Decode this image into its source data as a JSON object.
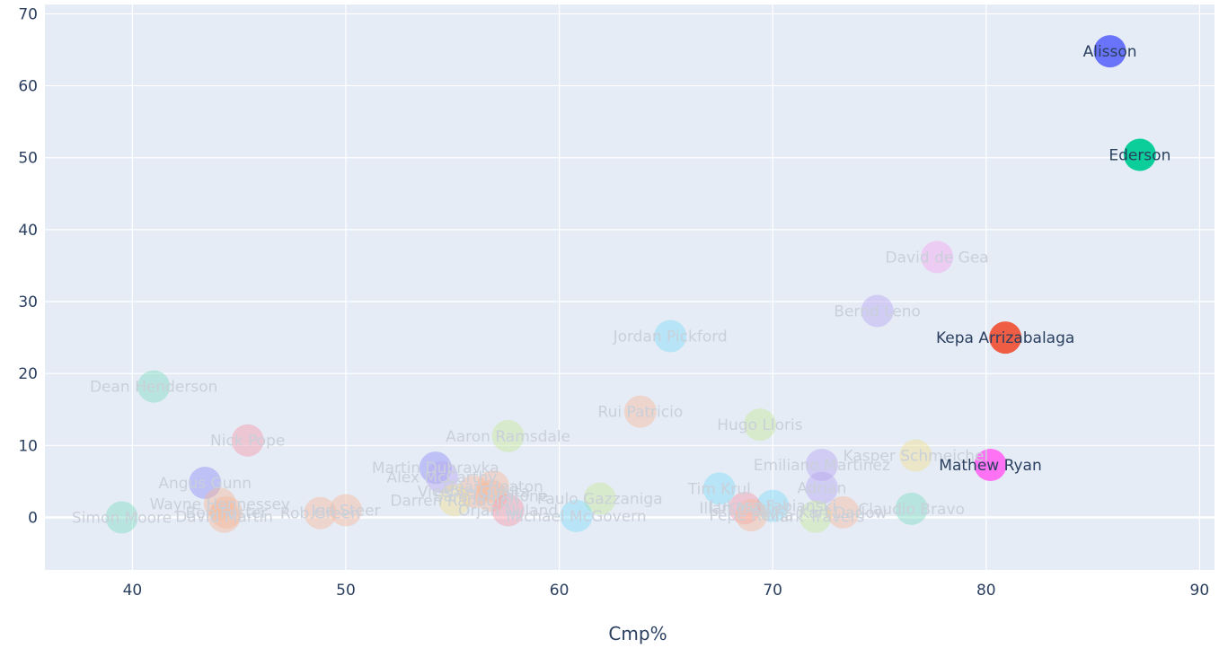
{
  "chart_data": {
    "type": "scatter",
    "title": "",
    "xlabel": "Cmp%",
    "ylabel": "",
    "xlim": [
      35.9,
      90.7
    ],
    "ylim": [
      -7.3,
      71.3
    ],
    "xticks": [
      40,
      50,
      60,
      70,
      80,
      90
    ],
    "yticks": [
      0,
      10,
      20,
      30,
      40,
      50,
      60,
      70
    ],
    "grid": true,
    "legend": "none",
    "background": "#e5ecf6",
    "points": [
      {
        "label": "Alisson",
        "x": 85.8,
        "y": 64.8,
        "color": "#636efa",
        "faded": false
      },
      {
        "label": "Ederson",
        "x": 87.2,
        "y": 50.4,
        "color": "#00cc96",
        "faded": false
      },
      {
        "label": "Kepa Arrizabalaga",
        "x": 80.9,
        "y": 25.0,
        "color": "#ef553b",
        "faded": false
      },
      {
        "label": "Mathew Ryan",
        "x": 80.2,
        "y": 7.3,
        "color": "#ff6bf2",
        "faded": false
      },
      {
        "label": "David de Gea",
        "x": 77.7,
        "y": 36.2,
        "color": "#f7a6f0",
        "faded": true
      },
      {
        "label": "Bernd Leno",
        "x": 74.9,
        "y": 28.7,
        "color": "#b9a6f0",
        "faded": true
      },
      {
        "label": "Jordan Pickford",
        "x": 65.2,
        "y": 25.2,
        "color": "#7fdcf7",
        "faded": true
      },
      {
        "label": "Dean Henderson",
        "x": 41.0,
        "y": 18.2,
        "color": "#7fdcc0",
        "faded": true
      },
      {
        "label": "Rui Patricio",
        "x": 63.8,
        "y": 14.7,
        "color": "#f7b89a",
        "faded": true
      },
      {
        "label": "Hugo Lloris",
        "x": 69.4,
        "y": 12.9,
        "color": "#c8e89a",
        "faded": true
      },
      {
        "label": "Nick Pope",
        "x": 45.4,
        "y": 10.7,
        "color": "#f79aa8",
        "faded": true
      },
      {
        "label": "Aaron Ramsdale",
        "x": 57.6,
        "y": 11.3,
        "color": "#c8e89a",
        "faded": true
      },
      {
        "label": "Kasper Schmeichel",
        "x": 76.7,
        "y": 8.6,
        "color": "#f2e08f",
        "faded": true
      },
      {
        "label": "Emiliano Martinez",
        "x": 72.3,
        "y": 7.3,
        "color": "#b9a6f0",
        "faded": true
      },
      {
        "label": "Martin Dubravka",
        "x": 54.2,
        "y": 6.9,
        "color": "#8e8ef7",
        "faded": true
      },
      {
        "label": "Alex McCarthy",
        "x": 54.5,
        "y": 5.6,
        "color": "#b9a6f0",
        "faded": true
      },
      {
        "label": "Angus Gunn",
        "x": 43.4,
        "y": 4.8,
        "color": "#8e8ef7",
        "faded": true
      },
      {
        "label": "Adrian",
        "x": 72.3,
        "y": 4.1,
        "color": "#b9a6f0",
        "faded": true
      },
      {
        "label": "Tim Krul",
        "x": 67.5,
        "y": 4.0,
        "color": "#7fdcf7",
        "faded": true
      },
      {
        "label": "Vicente Guaita",
        "x": 56.0,
        "y": 3.6,
        "color": "#f7b89a",
        "faded": true
      },
      {
        "label": "Sam Johnstone",
        "x": 56.8,
        "y": 3.0,
        "color": "#f7b89a",
        "faded": true
      },
      {
        "label": "Paulo Gazzaniga",
        "x": 61.9,
        "y": 2.6,
        "color": "#c8e89a",
        "faded": true
      },
      {
        "label": "Darren Randolph",
        "x": 55.1,
        "y": 2.4,
        "color": "#f2e08f",
        "faded": true
      },
      {
        "label": "Dean Heaton",
        "x": 56.9,
        "y": 4.3,
        "color": "#f7b89a",
        "faded": true
      },
      {
        "label": "Wayne Hennessey",
        "x": 44.1,
        "y": 1.9,
        "color": "#f7b89a",
        "faded": true
      },
      {
        "label": "Ben Foster",
        "x": 44.4,
        "y": 0.7,
        "color": "#f7b89a",
        "faded": true
      },
      {
        "label": "Jed Steer",
        "x": 50.0,
        "y": 1.0,
        "color": "#f7b89a",
        "faded": true
      },
      {
        "label": "Rob Green",
        "x": 48.8,
        "y": 0.6,
        "color": "#f7b89a",
        "faded": true
      },
      {
        "label": "David Martin",
        "x": 44.3,
        "y": 0.1,
        "color": "#f7b89a",
        "faded": true
      },
      {
        "label": "Simon Moore",
        "x": 39.5,
        "y": 0.0,
        "color": "#7fdcc0",
        "faded": true
      },
      {
        "label": "Orjan Nyland",
        "x": 57.6,
        "y": 1.0,
        "color": "#f79aa8",
        "faded": true
      },
      {
        "label": "Michael McGovern",
        "x": 60.8,
        "y": 0.2,
        "color": "#7fdcf7",
        "faded": true
      },
      {
        "label": "Claudio Bravo",
        "x": 76.5,
        "y": 1.2,
        "color": "#7fdcc0",
        "faded": true
      },
      {
        "label": "Lukasz Fabianski",
        "x": 70.0,
        "y": 1.6,
        "color": "#7fdcf7",
        "faded": true
      },
      {
        "label": "Illan Meslier",
        "x": 68.7,
        "y": 1.3,
        "color": "#f79aa8",
        "faded": true
      },
      {
        "label": "Pepe Reina",
        "x": 69.0,
        "y": 0.3,
        "color": "#f7b89a",
        "faded": true
      },
      {
        "label": "Mark Travers",
        "x": 72.0,
        "y": 0.1,
        "color": "#c8e89a",
        "faded": true
      },
      {
        "label": "Karl Darlow",
        "x": 73.3,
        "y": 0.7,
        "color": "#f7b89a",
        "faded": true
      }
    ]
  }
}
